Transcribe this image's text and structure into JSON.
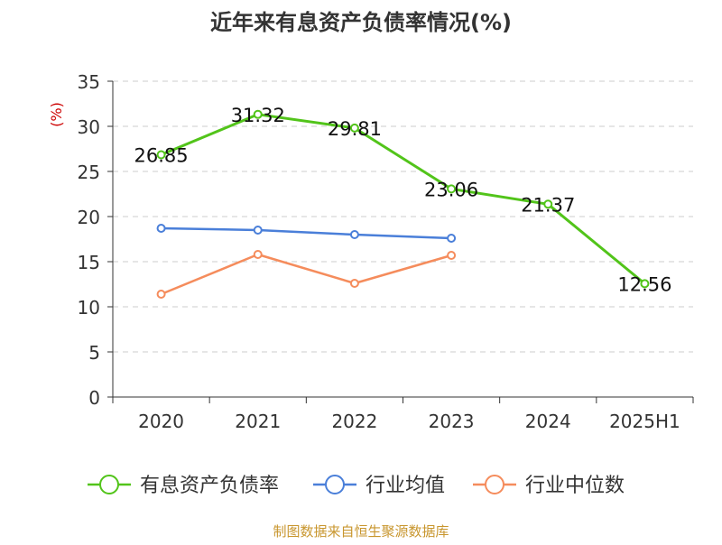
{
  "chart_data": {
    "type": "line",
    "title": "近年来有息资产负债率情况(%)",
    "ylabel": "(%)",
    "xlabel": "",
    "categories": [
      "2020",
      "2021",
      "2022",
      "2023",
      "2024",
      "2025H1"
    ],
    "ylim": [
      0,
      35
    ],
    "yticks": [
      0,
      5,
      10,
      15,
      20,
      25,
      30,
      35
    ],
    "grid": true,
    "legend_position": "bottom",
    "series": [
      {
        "name": "有息资产负债率",
        "color": "#52c41a",
        "values": [
          26.85,
          31.32,
          29.81,
          23.06,
          21.37,
          12.56
        ],
        "labels": [
          "26.85",
          "31.32",
          "29.81",
          "23.06",
          "21.37",
          "12.56"
        ]
      },
      {
        "name": "行业均值",
        "color": "#4a7fd9",
        "values": [
          18.7,
          18.5,
          18.0,
          17.6,
          null,
          null
        ]
      },
      {
        "name": "行业中位数",
        "color": "#f58c5c",
        "values": [
          11.4,
          15.8,
          12.6,
          15.7,
          null,
          null
        ]
      }
    ]
  },
  "source_text": "制图数据来自恒生聚源数据库"
}
